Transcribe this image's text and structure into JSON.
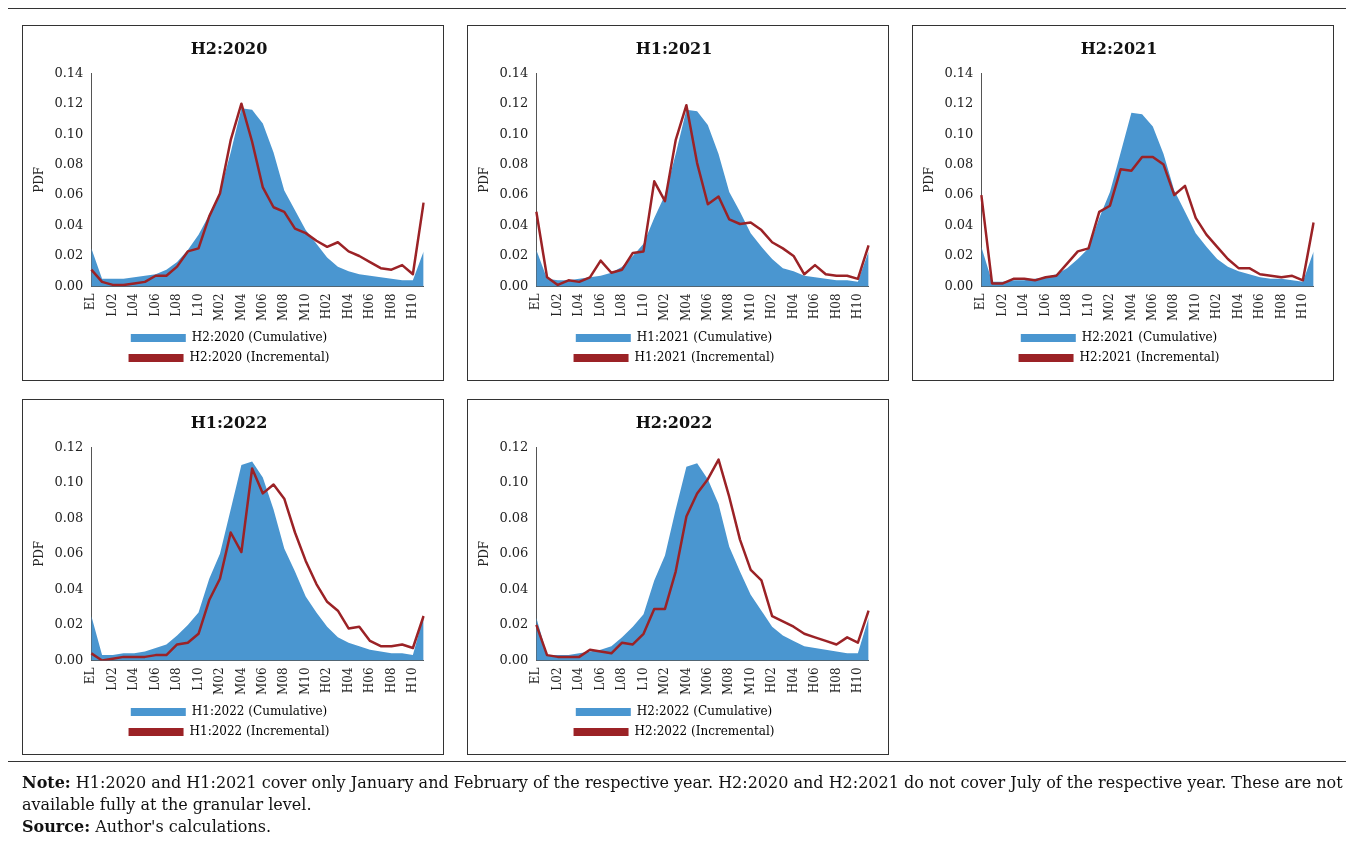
{
  "chart_data": [
    {
      "type": "area",
      "title": "H2:2020",
      "ylabel": "PDF",
      "categories": [
        "EL",
        null,
        "L02",
        null,
        "L04",
        null,
        "L06",
        null,
        "L08",
        null,
        "L10",
        null,
        "M02",
        null,
        "M04",
        null,
        "M06",
        null,
        "M08",
        null,
        "M10",
        null,
        "H02",
        null,
        "H04",
        null,
        "H06",
        null,
        "H08",
        null,
        "H10",
        null
      ],
      "ylim": [
        0,
        0.14
      ],
      "yticks": [
        {
          "value": 0,
          "label": "0.00"
        },
        {
          "value": 0.02,
          "label": "0.02"
        },
        {
          "value": 0.04,
          "label": "0.04"
        },
        {
          "value": 0.06,
          "label": "0.06"
        },
        {
          "value": 0.08,
          "label": "0.08"
        },
        {
          "value": 0.1,
          "label": "0.10"
        },
        {
          "value": 0.12,
          "label": "0.12"
        },
        {
          "value": 0.14,
          "label": "0.14"
        }
      ],
      "legend": "bottom",
      "grid": false,
      "series": [
        {
          "name": "H2:2020 (Cumulative)",
          "color": "#4a96d0",
          "values": [
            0.025,
            0.005,
            0.005,
            0.005,
            0.006,
            0.007,
            0.008,
            0.011,
            0.016,
            0.024,
            0.034,
            0.047,
            0.062,
            0.088,
            0.117,
            0.116,
            0.107,
            0.088,
            0.063,
            0.05,
            0.037,
            0.028,
            0.019,
            0.013,
            0.01,
            0.008,
            0.007,
            0.006,
            0.005,
            0.004,
            0.004,
            0.023
          ]
        },
        {
          "name": "H2:2020 (Incremental)",
          "type": "line",
          "color": "#9b2226",
          "values": [
            0.011,
            0.003,
            0.001,
            0.001,
            0.002,
            0.003,
            0.007,
            0.007,
            0.013,
            0.023,
            0.025,
            0.046,
            0.061,
            0.096,
            0.12,
            0.095,
            0.065,
            0.052,
            0.049,
            0.038,
            0.035,
            0.03,
            0.026,
            0.029,
            0.023,
            0.02,
            0.016,
            0.012,
            0.011,
            0.014,
            0.008,
            0.055
          ]
        }
      ]
    },
    {
      "type": "area",
      "title": "H1:2021",
      "ylabel": "PDF",
      "categories": [
        "EL",
        null,
        "L02",
        null,
        "L04",
        null,
        "L06",
        null,
        "L08",
        null,
        "L10",
        null,
        "M02",
        null,
        "M04",
        null,
        "M06",
        null,
        "M08",
        null,
        "M10",
        null,
        "H02",
        null,
        "H04",
        null,
        "H06",
        null,
        "H08",
        null,
        "H10",
        null
      ],
      "ylim": [
        0,
        0.14
      ],
      "yticks": [
        {
          "value": 0,
          "label": "0.00"
        },
        {
          "value": 0.02,
          "label": "0.02"
        },
        {
          "value": 0.04,
          "label": "0.04"
        },
        {
          "value": 0.06,
          "label": "0.06"
        },
        {
          "value": 0.08,
          "label": "0.08"
        },
        {
          "value": 0.1,
          "label": "0.10"
        },
        {
          "value": 0.12,
          "label": "0.12"
        },
        {
          "value": 0.14,
          "label": "0.14"
        }
      ],
      "legend": "bottom",
      "grid": false,
      "series": [
        {
          "name": "H1:2021 (Cumulative)",
          "color": "#4a96d0",
          "values": [
            0.024,
            0.005,
            0.004,
            0.004,
            0.005,
            0.006,
            0.007,
            0.009,
            0.013,
            0.02,
            0.028,
            0.045,
            0.06,
            0.087,
            0.116,
            0.115,
            0.106,
            0.087,
            0.062,
            0.049,
            0.035,
            0.026,
            0.018,
            0.012,
            0.01,
            0.007,
            0.006,
            0.005,
            0.004,
            0.004,
            0.003,
            0.023
          ]
        },
        {
          "name": "H1:2021 (Incremental)",
          "type": "line",
          "color": "#9b2226",
          "values": [
            0.049,
            0.006,
            0.001,
            0.004,
            0.003,
            0.006,
            0.017,
            0.009,
            0.011,
            0.022,
            0.023,
            0.069,
            0.056,
            0.096,
            0.119,
            0.081,
            0.054,
            0.059,
            0.044,
            0.041,
            0.042,
            0.037,
            0.029,
            0.025,
            0.02,
            0.008,
            0.014,
            0.008,
            0.007,
            0.007,
            0.005,
            0.027
          ]
        }
      ]
    },
    {
      "type": "area",
      "title": "H2:2021",
      "ylabel": "PDF",
      "categories": [
        "EL",
        null,
        "L02",
        null,
        "L04",
        null,
        "L06",
        null,
        "L08",
        null,
        "L10",
        null,
        "M02",
        null,
        "M04",
        null,
        "M06",
        null,
        "M08",
        null,
        "M10",
        null,
        "H02",
        null,
        "H04",
        null,
        "H06",
        null,
        "H08",
        null,
        "H10",
        null
      ],
      "ylim": [
        0,
        0.14
      ],
      "yticks": [
        {
          "value": 0,
          "label": "0.00"
        },
        {
          "value": 0.02,
          "label": "0.02"
        },
        {
          "value": 0.04,
          "label": "0.04"
        },
        {
          "value": 0.06,
          "label": "0.06"
        },
        {
          "value": 0.08,
          "label": "0.08"
        },
        {
          "value": 0.1,
          "label": "0.10"
        },
        {
          "value": 0.12,
          "label": "0.12"
        },
        {
          "value": 0.14,
          "label": "0.14"
        }
      ],
      "legend": "bottom",
      "grid": false,
      "series": [
        {
          "name": "H2:2021 (Cumulative)",
          "color": "#4a96d0",
          "values": [
            0.026,
            0.003,
            0.003,
            0.004,
            0.004,
            0.005,
            0.006,
            0.008,
            0.012,
            0.018,
            0.025,
            0.045,
            0.062,
            0.088,
            0.114,
            0.113,
            0.105,
            0.087,
            0.063,
            0.049,
            0.035,
            0.026,
            0.018,
            0.013,
            0.01,
            0.008,
            0.006,
            0.005,
            0.005,
            0.004,
            0.003,
            0.023
          ]
        },
        {
          "name": "H2:2021 (Incremental)",
          "type": "line",
          "color": "#9b2226",
          "values": [
            0.06,
            0.002,
            0.002,
            0.005,
            0.005,
            0.004,
            0.006,
            0.007,
            0.015,
            0.023,
            0.025,
            0.049,
            0.053,
            0.077,
            0.076,
            0.085,
            0.085,
            0.08,
            0.06,
            0.066,
            0.045,
            0.034,
            0.026,
            0.018,
            0.012,
            0.012,
            0.008,
            0.007,
            0.006,
            0.007,
            0.004,
            0.042
          ]
        }
      ]
    },
    {
      "type": "area",
      "title": "H1:2022",
      "ylabel": "PDF",
      "categories": [
        "EL",
        null,
        "L02",
        null,
        "L04",
        null,
        "L06",
        null,
        "L08",
        null,
        "L10",
        null,
        "M02",
        null,
        "M04",
        null,
        "M06",
        null,
        "M08",
        null,
        "M10",
        null,
        "H02",
        null,
        "H04",
        null,
        "H06",
        null,
        "H08",
        null,
        "H10",
        null
      ],
      "ylim": [
        0,
        0.12
      ],
      "yticks": [
        {
          "value": 0,
          "label": "0.00"
        },
        {
          "value": 0.02,
          "label": "0.02"
        },
        {
          "value": 0.04,
          "label": "0.04"
        },
        {
          "value": 0.06,
          "label": "0.06"
        },
        {
          "value": 0.08,
          "label": "0.08"
        },
        {
          "value": 0.1,
          "label": "0.10"
        },
        {
          "value": 0.12,
          "label": "0.12"
        }
      ],
      "legend": "bottom",
      "grid": false,
      "series": [
        {
          "name": "H1:2022 (Cumulative)",
          "color": "#4a96d0",
          "values": [
            0.025,
            0.003,
            0.003,
            0.004,
            0.004,
            0.005,
            0.007,
            0.009,
            0.014,
            0.02,
            0.027,
            0.046,
            0.06,
            0.085,
            0.11,
            0.112,
            0.103,
            0.085,
            0.063,
            0.05,
            0.036,
            0.027,
            0.019,
            0.013,
            0.01,
            0.008,
            0.006,
            0.005,
            0.004,
            0.004,
            0.003,
            0.025
          ]
        },
        {
          "name": "H1:2022 (Incremental)",
          "type": "line",
          "color": "#9b2226",
          "values": [
            0.004,
            0.0,
            0.001,
            0.002,
            0.002,
            0.002,
            0.003,
            0.003,
            0.009,
            0.01,
            0.015,
            0.034,
            0.046,
            0.072,
            0.061,
            0.108,
            0.094,
            0.099,
            0.091,
            0.072,
            0.056,
            0.043,
            0.033,
            0.028,
            0.018,
            0.019,
            0.011,
            0.008,
            0.008,
            0.009,
            0.007,
            0.025
          ]
        }
      ]
    },
    {
      "type": "area",
      "title": "H2:2022",
      "ylabel": "PDF",
      "categories": [
        "EL",
        null,
        "L02",
        null,
        "L04",
        null,
        "L06",
        null,
        "L08",
        null,
        "L10",
        null,
        "M02",
        null,
        "M04",
        null,
        "M06",
        null,
        "M08",
        null,
        "M10",
        null,
        "H02",
        null,
        "H04",
        null,
        "H06",
        null,
        "H08",
        null,
        "H10",
        null
      ],
      "ylim": [
        0,
        0.12
      ],
      "yticks": [
        {
          "value": 0,
          "label": "0.00"
        },
        {
          "value": 0.02,
          "label": "0.02"
        },
        {
          "value": 0.04,
          "label": "0.04"
        },
        {
          "value": 0.06,
          "label": "0.06"
        },
        {
          "value": 0.08,
          "label": "0.08"
        },
        {
          "value": 0.1,
          "label": "0.10"
        },
        {
          "value": 0.12,
          "label": "0.12"
        }
      ],
      "legend": "bottom",
      "grid": false,
      "annotations": [
        "Note: H1:2020 and H1:2021 cover only January and February of the respective year. H2:2020 and H2:2021 do not cover July of the respective year. These are not available fully at the granular level.",
        "Source: Author's calculations."
      ],
      "series": [
        {
          "name": "H2:2022 (Cumulative)",
          "color": "#4a96d0",
          "values": [
            0.024,
            0.003,
            0.003,
            0.003,
            0.004,
            0.005,
            0.006,
            0.008,
            0.013,
            0.019,
            0.026,
            0.045,
            0.059,
            0.085,
            0.109,
            0.111,
            0.102,
            0.088,
            0.064,
            0.05,
            0.037,
            0.028,
            0.019,
            0.014,
            0.011,
            0.008,
            0.007,
            0.006,
            0.005,
            0.004,
            0.004,
            0.024
          ]
        },
        {
          "name": "H2:2022 (Incremental)",
          "type": "line",
          "color": "#9b2226",
          "values": [
            0.02,
            0.003,
            0.002,
            0.002,
            0.002,
            0.006,
            0.005,
            0.004,
            0.01,
            0.009,
            0.015,
            0.029,
            0.029,
            0.05,
            0.081,
            0.094,
            0.102,
            0.113,
            0.092,
            0.068,
            0.051,
            0.045,
            0.025,
            0.022,
            0.019,
            0.015,
            0.013,
            0.011,
            0.009,
            0.013,
            0.01,
            0.028
          ]
        }
      ]
    }
  ]
}
